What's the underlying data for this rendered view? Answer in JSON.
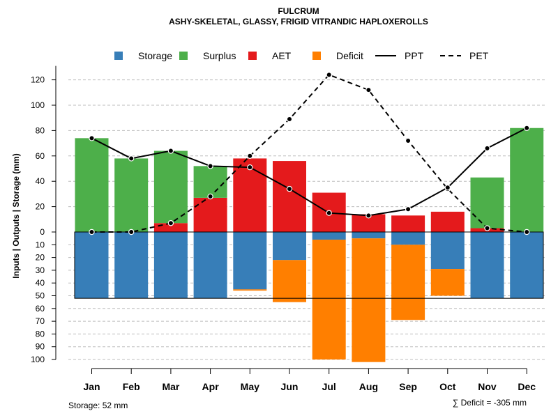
{
  "chart_data": {
    "type": "bar",
    "title": "FULCRUM",
    "subtitle": "ASHY-SKELETAL, GLASSY, FRIGID VITRANDIC HAPLOXEROLLS",
    "ylabel": "Inputs | Outputs | Storage    (mm)",
    "categories": [
      "Jan",
      "Feb",
      "Mar",
      "Apr",
      "May",
      "Jun",
      "Jul",
      "Aug",
      "Sep",
      "Oct",
      "Nov",
      "Dec"
    ],
    "upper_axis": {
      "range": [
        0,
        130
      ],
      "ticks": [
        "0",
        "20",
        "40",
        "60",
        "80",
        "100",
        "120"
      ]
    },
    "lower_axis": {
      "range": [
        0,
        100
      ],
      "ticks": [
        "10",
        "20",
        "30",
        "40",
        "50",
        "60",
        "70",
        "80",
        "90",
        "100"
      ]
    },
    "series": [
      {
        "name": "Storage",
        "color": "#377EB8",
        "values": [
          52,
          52,
          52,
          52,
          45,
          22,
          6,
          5,
          10,
          29,
          52,
          52
        ]
      },
      {
        "name": "Surplus",
        "color": "#4DAF4A",
        "values": [
          74,
          58,
          57,
          25,
          0,
          0,
          0,
          0,
          0,
          0,
          40,
          82
        ]
      },
      {
        "name": "AET",
        "color": "#E41A1C",
        "values": [
          0,
          0,
          7,
          27,
          58,
          56,
          31,
          14,
          13,
          16,
          3,
          0
        ]
      },
      {
        "name": "Deficit",
        "color": "#FF7F00",
        "values": [
          0,
          0,
          0,
          0,
          1,
          33,
          94,
          97,
          59,
          21,
          0,
          0
        ]
      },
      {
        "name": "PPT",
        "color": "#000000",
        "line": "solid",
        "values": [
          74,
          58,
          64,
          52,
          51,
          34,
          15,
          13,
          18,
          35,
          66,
          82
        ]
      },
      {
        "name": "PET",
        "color": "#000000",
        "line": "dashed",
        "values": [
          0,
          0,
          7,
          28,
          60,
          89,
          124,
          112,
          72,
          34,
          3,
          0
        ]
      }
    ],
    "legend": [
      "Storage",
      "Surplus",
      "AET",
      "Deficit",
      "PPT",
      "PET"
    ],
    "legend_position": "top",
    "grid": true
  },
  "footer": {
    "storage_note": "Storage: 52 mm",
    "deficit_note": "∑ Deficit = -305 mm"
  }
}
